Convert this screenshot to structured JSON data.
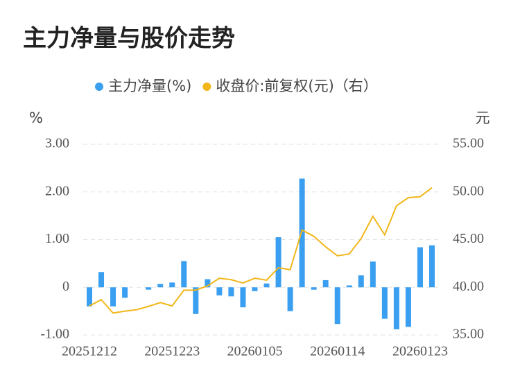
{
  "chart_data": {
    "type": "bar_line",
    "title": "主力净量与股价走势",
    "ylabel": "%",
    "y2label": "元",
    "categories": [
      "20251212",
      null,
      null,
      null,
      null,
      null,
      null,
      "20251223",
      null,
      null,
      null,
      null,
      null,
      null,
      "20260105",
      null,
      null,
      null,
      null,
      null,
      null,
      "20260114",
      null,
      null,
      null,
      null,
      null,
      null,
      "20260123",
      null
    ],
    "series": [
      {
        "name": "主力净量(%)",
        "type": "bar",
        "color": "#3a9ff0",
        "values": [
          -0.4,
          0.32,
          -0.4,
          -0.22,
          0,
          -0.05,
          0.07,
          0.1,
          0.55,
          -0.56,
          0.17,
          -0.17,
          -0.19,
          -0.42,
          -0.08,
          0.08,
          1.05,
          -0.5,
          2.28,
          -0.05,
          0.15,
          -0.77,
          0.04,
          0.25,
          0.54,
          -0.66,
          -0.88,
          -0.83,
          0.84,
          0.88
        ]
      },
      {
        "name": "收盘价:前复权(元)（右）",
        "type": "line",
        "axis": "y2",
        "color": "#f2b619",
        "values": [
          38.05,
          38.7,
          37.3,
          37.5,
          37.65,
          38.0,
          38.4,
          38.05,
          39.7,
          39.7,
          40.15,
          40.95,
          40.8,
          40.45,
          40.95,
          40.75,
          42.05,
          41.85,
          46.0,
          45.35,
          44.25,
          43.3,
          43.5,
          45.1,
          47.45,
          45.5,
          48.55,
          49.4,
          49.5,
          50.45
        ]
      }
    ],
    "ylim": [
      -1,
      3
    ],
    "yticks": [
      {
        "value": -1,
        "label": "-1.00"
      },
      0,
      {
        "value": 1,
        "label": "1.00"
      },
      {
        "value": 2,
        "label": "2.00"
      },
      {
        "value": 3,
        "label": "3.00"
      }
    ],
    "y2lim": [
      35,
      55
    ],
    "y2ticks": [
      {
        "value": 35,
        "label": "35.00"
      },
      {
        "value": 40,
        "label": "40.00"
      },
      {
        "value": 45,
        "label": "45.00"
      },
      {
        "value": 50,
        "label": "50.00"
      },
      {
        "value": 55,
        "label": "55.00"
      }
    ],
    "grid": true
  }
}
